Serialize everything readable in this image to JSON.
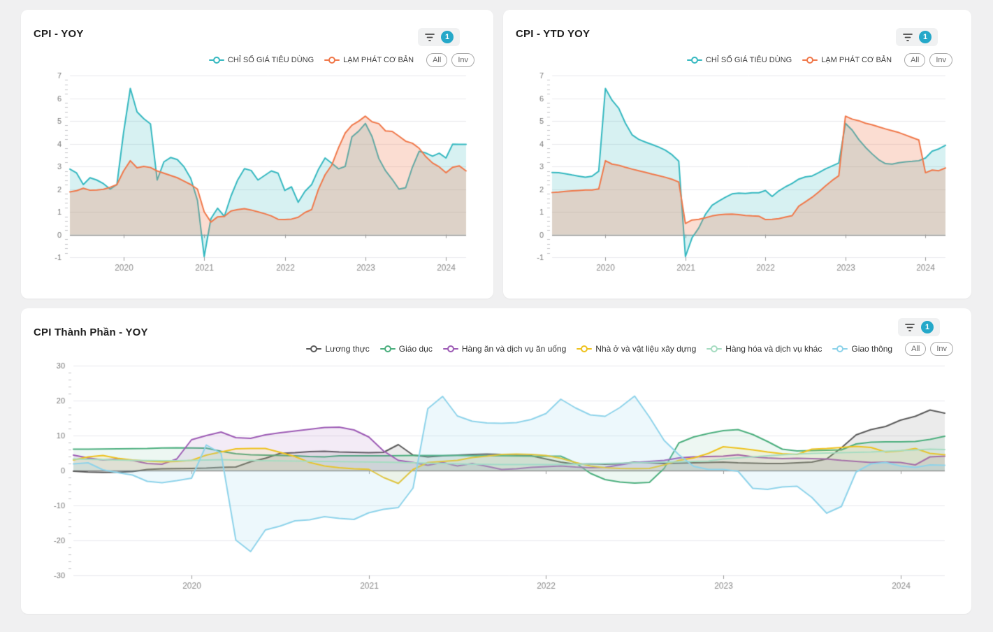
{
  "app": {
    "background": "#f0f0f1",
    "panel_background": "#ffffff",
    "accent_badge_color": "#25a8c9"
  },
  "panels": [
    {
      "title": "CPI - YOY",
      "filter_badge": "1",
      "legend_buttons": [
        "All",
        "Inv"
      ],
      "chart_index": 0
    },
    {
      "title": "CPI - YTD YOY",
      "filter_badge": "1",
      "legend_buttons": [
        "All",
        "Inv"
      ],
      "chart_index": 1
    },
    {
      "title": "CPI Thành Phần - YOY",
      "filter_badge": "1",
      "legend_buttons": [
        "All",
        "Inv"
      ],
      "chart_index": 2
    }
  ],
  "chart_data": [
    {
      "type": "line",
      "title": "CPI - YOY",
      "x_frequency": "monthly",
      "x_start": "2019-05",
      "x_end": "2024-04",
      "xtick_labels": [
        "2020",
        "2021",
        "2022",
        "2023",
        "2024"
      ],
      "xtick_month_index": [
        8,
        20,
        32,
        44,
        56
      ],
      "ylim": [
        -1,
        7
      ],
      "ytick_interval": 1,
      "grid": true,
      "legend_position": "top-right",
      "series": [
        {
          "name": "CHỈ SỐ GIÁ TIÊU DÙNG",
          "color": "#35b8c0",
          "fill_opacity": 0.2,
          "values": [
            2.88,
            2.71,
            2.2,
            2.5,
            2.4,
            2.24,
            2.0,
            2.2,
            4.5,
            6.43,
            5.4,
            5.1,
            4.87,
            2.4,
            3.2,
            3.39,
            3.3,
            2.98,
            2.47,
            1.5,
            -0.97,
            0.7,
            1.16,
            0.8,
            1.7,
            2.41,
            2.9,
            2.82,
            2.4,
            2.6,
            2.8,
            2.7,
            1.94,
            2.1,
            1.42,
            1.9,
            2.2,
            2.86,
            3.37,
            3.14,
            2.89,
            3.0,
            4.3,
            4.55,
            4.89,
            4.31,
            3.35,
            2.81,
            2.43,
            2.0,
            2.06,
            2.96,
            3.66,
            3.59,
            3.45,
            3.58,
            3.37,
            3.98,
            3.97,
            3.97
          ]
        },
        {
          "name": "LẠM PHÁT CƠ BẢN",
          "color": "#f0784a",
          "fill_opacity": 0.25,
          "values": [
            1.88,
            1.93,
            2.04,
            1.95,
            1.96,
            1.99,
            2.08,
            2.2,
            2.8,
            3.25,
            2.94,
            3.0,
            2.95,
            2.8,
            2.7,
            2.6,
            2.5,
            2.35,
            2.2,
            2.0,
            1.0,
            0.55,
            0.78,
            0.8,
            1.04,
            1.1,
            1.14,
            1.08,
            1.0,
            0.92,
            0.82,
            0.67,
            0.66,
            0.68,
            0.76,
            0.97,
            1.1,
            1.98,
            2.63,
            3.06,
            3.82,
            4.47,
            4.81,
            4.99,
            5.21,
            4.96,
            4.88,
            4.56,
            4.54,
            4.33,
            4.11,
            4.02,
            3.8,
            3.43,
            3.15,
            2.98,
            2.72,
            2.96,
            3.02,
            2.8
          ]
        }
      ]
    },
    {
      "type": "line",
      "title": "CPI - YTD YOY",
      "x_frequency": "monthly",
      "x_start": "2019-05",
      "x_end": "2024-04",
      "xtick_labels": [
        "2020",
        "2021",
        "2022",
        "2023",
        "2024"
      ],
      "xtick_month_index": [
        8,
        20,
        32,
        44,
        56
      ],
      "ylim": [
        -1,
        7
      ],
      "ytick_interval": 1,
      "grid": true,
      "legend_position": "top-right",
      "series": [
        {
          "name": "CHỈ SỐ GIÁ TIÊU DÙNG",
          "color": "#35b8c0",
          "fill_opacity": 0.2,
          "values": [
            2.73,
            2.72,
            2.68,
            2.62,
            2.57,
            2.52,
            2.57,
            2.79,
            6.43,
            5.91,
            5.56,
            4.9,
            4.39,
            4.19,
            4.07,
            3.96,
            3.85,
            3.71,
            3.51,
            3.23,
            -0.97,
            -0.14,
            0.29,
            0.89,
            1.29,
            1.47,
            1.64,
            1.79,
            1.82,
            1.81,
            1.84,
            1.84,
            1.94,
            1.68,
            1.92,
            2.1,
            2.25,
            2.44,
            2.54,
            2.58,
            2.73,
            2.89,
            3.02,
            3.15,
            4.89,
            4.6,
            4.18,
            3.84,
            3.55,
            3.29,
            3.12,
            3.1,
            3.16,
            3.2,
            3.22,
            3.25,
            3.37,
            3.67,
            3.77,
            3.93
          ]
        },
        {
          "name": "LẠM PHÁT CƠ BẢN",
          "color": "#f0784a",
          "fill_opacity": 0.25,
          "values": [
            1.85,
            1.87,
            1.9,
            1.92,
            1.94,
            1.96,
            1.96,
            2.01,
            3.25,
            3.1,
            3.05,
            2.96,
            2.88,
            2.81,
            2.74,
            2.66,
            2.59,
            2.52,
            2.43,
            2.31,
            0.49,
            0.64,
            0.67,
            0.74,
            0.82,
            0.87,
            0.89,
            0.9,
            0.88,
            0.84,
            0.82,
            0.81,
            0.66,
            0.67,
            0.7,
            0.77,
            0.83,
            1.25,
            1.44,
            1.64,
            1.88,
            2.14,
            2.38,
            2.59,
            5.21,
            5.08,
            5.01,
            4.9,
            4.83,
            4.74,
            4.65,
            4.57,
            4.49,
            4.38,
            4.27,
            4.16,
            2.72,
            2.84,
            2.81,
            2.93
          ]
        }
      ]
    },
    {
      "type": "line",
      "title": "CPI Thành Phần - YOY",
      "x_frequency": "monthly",
      "x_start": "2019-05",
      "x_end": "2024-04",
      "xtick_labels": [
        "2020",
        "2021",
        "2022",
        "2023",
        "2024"
      ],
      "xtick_month_index": [
        8,
        20,
        32,
        44,
        56
      ],
      "ylim": [
        -30,
        30
      ],
      "ytick_interval": 10,
      "grid": true,
      "legend_position": "top-right",
      "series": [
        {
          "name": "Lương thực",
          "color": "#5b5b5b",
          "fill_opacity": 0.12,
          "values": [
            -0.2,
            -0.45,
            -0.55,
            -0.5,
            -0.3,
            0.3,
            0.5,
            0.55,
            0.6,
            0.7,
            0.9,
            1.0,
            2.5,
            3.5,
            4.9,
            5.1,
            5.4,
            5.5,
            5.3,
            5.2,
            5.1,
            5.2,
            7.4,
            4.4,
            3.9,
            4.2,
            4.4,
            4.6,
            4.7,
            4.6,
            4.4,
            4.2,
            3.3,
            2.4,
            1.8,
            1.9,
            1.8,
            1.9,
            2.4,
            2.2,
            2.0,
            2.1,
            2.2,
            2.3,
            2.4,
            2.2,
            2.1,
            2.0,
            2.0,
            2.2,
            2.4,
            3.3,
            6.5,
            10.2,
            11.7,
            12.6,
            14.4,
            15.5,
            17.3,
            16.4
          ]
        },
        {
          "name": "Giáo dục",
          "color": "#4caf7e",
          "fill_opacity": 0.1,
          "values": [
            6.1,
            6.1,
            6.15,
            6.2,
            6.25,
            6.3,
            6.45,
            6.5,
            6.45,
            6.4,
            5.5,
            4.8,
            4.5,
            4.4,
            4.3,
            4.2,
            4.0,
            3.9,
            4.2,
            4.2,
            4.2,
            4.2,
            4.25,
            4.3,
            4.3,
            4.3,
            4.3,
            4.25,
            4.2,
            4.2,
            4.15,
            4.1,
            4.1,
            4.1,
            2.2,
            -0.8,
            -2.6,
            -3.3,
            -3.6,
            -3.4,
            0.6,
            7.9,
            9.6,
            10.6,
            11.4,
            11.7,
            10.3,
            8.3,
            6.1,
            5.6,
            5.7,
            5.8,
            5.9,
            7.6,
            8.1,
            8.2,
            8.2,
            8.3,
            8.9,
            9.8
          ]
        },
        {
          "name": "Hàng ăn và dịch vụ ăn uống",
          "color": "#9d5bb5",
          "fill_opacity": 0.12,
          "values": [
            4.4,
            3.6,
            3.0,
            3.3,
            2.9,
            2.0,
            1.8,
            3.3,
            8.8,
            10.0,
            11.0,
            9.4,
            9.2,
            10.2,
            10.8,
            11.3,
            11.8,
            12.3,
            12.4,
            11.6,
            9.6,
            5.6,
            2.9,
            2.3,
            1.5,
            2.3,
            1.3,
            2.0,
            1.2,
            0.3,
            0.5,
            0.9,
            1.1,
            1.3,
            1.0,
            0.8,
            0.9,
            1.6,
            2.3,
            2.6,
            2.9,
            3.6,
            3.9,
            4.0,
            4.1,
            4.5,
            3.9,
            3.6,
            3.4,
            3.5,
            3.4,
            3.3,
            2.9,
            2.6,
            2.3,
            2.4,
            2.3,
            1.6,
            3.9,
            4.1
          ]
        },
        {
          "name": "Nhà ở và vật liệu xây dựng",
          "color": "#eec21f",
          "fill_opacity": 0.1,
          "values": [
            3.0,
            3.9,
            4.3,
            3.5,
            3.0,
            2.7,
            2.5,
            2.6,
            2.9,
            4.4,
            5.3,
            6.2,
            6.3,
            6.3,
            5.2,
            4.0,
            2.3,
            1.3,
            0.8,
            0.5,
            0.35,
            -2.0,
            -3.7,
            0.3,
            2.3,
            2.6,
            2.9,
            3.7,
            4.1,
            4.6,
            4.7,
            4.6,
            4.3,
            3.5,
            2.3,
            1.3,
            0.8,
            0.6,
            0.55,
            0.6,
            1.6,
            2.9,
            3.6,
            4.9,
            6.8,
            6.4,
            5.9,
            5.3,
            4.8,
            4.6,
            6.1,
            6.3,
            6.6,
            6.9,
            6.6,
            5.3,
            5.6,
            6.3,
            4.9,
            4.5
          ]
        },
        {
          "name": "Hàng hóa và dịch vụ khác",
          "color": "#a6dcc1",
          "fill_opacity": 0.1,
          "values": [
            3.3,
            3.2,
            3.1,
            3.0,
            2.9,
            2.85,
            2.8,
            2.8,
            2.9,
            3.0,
            3.1,
            3.0,
            2.9,
            2.8,
            2.75,
            2.7,
            2.65,
            2.6,
            2.55,
            2.5,
            2.45,
            2.4,
            2.3,
            2.2,
            2.1,
            2.0,
            1.9,
            1.8,
            1.75,
            1.7,
            1.7,
            1.7,
            1.7,
            1.75,
            1.8,
            1.9,
            2.0,
            2.1,
            2.2,
            2.3,
            2.4,
            2.5,
            2.6,
            2.7,
            3.3,
            3.6,
            3.9,
            4.2,
            4.5,
            4.7,
            4.9,
            5.0,
            5.1,
            5.2,
            5.3,
            5.5,
            5.7,
            5.9,
            6.1,
            6.0
          ]
        },
        {
          "name": "Giao thông",
          "color": "#8ed3ea",
          "fill_opacity": 0.16,
          "values": [
            1.9,
            2.2,
            0.2,
            -0.6,
            -1.3,
            -3.1,
            -3.5,
            -2.9,
            -2.2,
            7.3,
            4.9,
            -19.9,
            -23.2,
            -17.0,
            -15.9,
            -14.4,
            -14.1,
            -13.2,
            -13.7,
            -14.0,
            -12.1,
            -11.1,
            -10.6,
            -5.0,
            17.7,
            21.2,
            15.6,
            14.1,
            13.6,
            13.5,
            13.7,
            14.6,
            16.3,
            20.4,
            17.9,
            15.9,
            15.5,
            18.0,
            21.3,
            15.3,
            8.6,
            4.5,
            1.2,
            0.3,
            0.3,
            -0.2,
            -5.1,
            -5.4,
            -4.7,
            -4.5,
            -7.7,
            -12.2,
            -10.3,
            -0.4,
            1.9,
            2.3,
            1.3,
            0.9,
            1.6,
            1.5
          ]
        }
      ]
    }
  ]
}
